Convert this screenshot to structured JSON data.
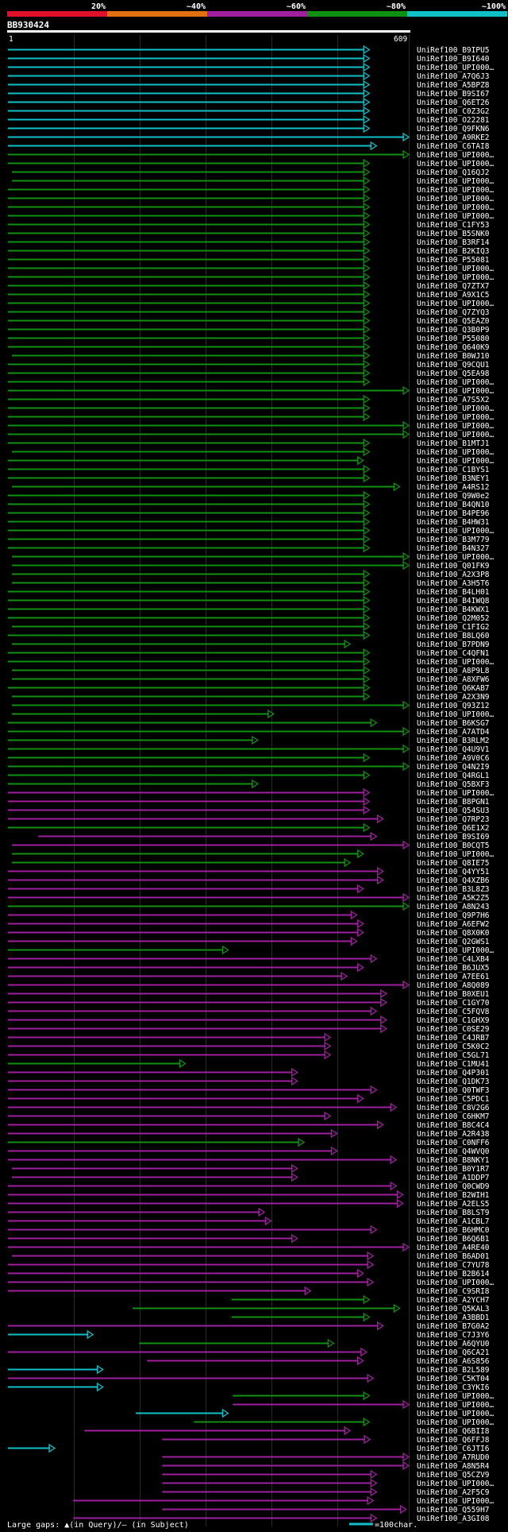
{
  "chart_data": {
    "type": "alignment-overview",
    "query": {
      "id": "BB930424",
      "start": "1",
      "end": "609",
      "length": 609
    },
    "identity_scale": [
      {
        "label": "20%",
        "color": "#e0102a"
      },
      {
        "label": "~40%",
        "color": "#e07010"
      },
      {
        "label": "~60%",
        "color": "#a020a0"
      },
      {
        "label": "~80%",
        "color": "#109010"
      },
      {
        "label": "~100%",
        "color": "#10c0c8"
      }
    ],
    "footer": {
      "gaps_text": "Large gaps: ▲(in Query)/– (in Subject)",
      "legend_text": "=100char."
    },
    "hits": [
      {
        "name": "UniRef100_B9IPU5",
        "cls": 4,
        "s": 1,
        "e": 549
      },
      {
        "name": "UniRef100_B9I640",
        "cls": 4,
        "s": 1,
        "e": 549
      },
      {
        "name": "UniRef100_UPI000…",
        "cls": 4,
        "s": 1,
        "e": 549
      },
      {
        "name": "UniRef100_A7Q6J3",
        "cls": 4,
        "s": 1,
        "e": 549
      },
      {
        "name": "UniRef100_A5BPZ8",
        "cls": 4,
        "s": 1,
        "e": 549
      },
      {
        "name": "UniRef100_B9SI67",
        "cls": 4,
        "s": 1,
        "e": 549
      },
      {
        "name": "UniRef100_Q6ET26",
        "cls": 4,
        "s": 1,
        "e": 549
      },
      {
        "name": "UniRef100_C0Z3G2",
        "cls": 4,
        "s": 1,
        "e": 549
      },
      {
        "name": "UniRef100_O22281",
        "cls": 4,
        "s": 1,
        "e": 549
      },
      {
        "name": "UniRef100_Q9FKN6",
        "cls": 4,
        "s": 1,
        "e": 549
      },
      {
        "name": "UniRef100_A9RKE2",
        "cls": 4,
        "s": 1,
        "e": 609
      },
      {
        "name": "UniRef100_C6TAI8",
        "cls": 4,
        "s": 1,
        "e": 560
      },
      {
        "name": "UniRef100_UPI000…",
        "cls": 3,
        "s": 1,
        "e": 609
      },
      {
        "name": "UniRef100_UPI000…",
        "cls": 3,
        "s": 1,
        "e": 549
      },
      {
        "name": "UniRef100_Q16QJ2",
        "cls": 3,
        "s": 7,
        "e": 549
      },
      {
        "name": "UniRef100_UPI000…",
        "cls": 3,
        "s": 7,
        "e": 549
      },
      {
        "name": "UniRef100_UPI000…",
        "cls": 3,
        "s": 1,
        "e": 549
      },
      {
        "name": "UniRef100_UPI000…",
        "cls": 3,
        "s": 1,
        "e": 549
      },
      {
        "name": "UniRef100_UPI000…",
        "cls": 3,
        "s": 1,
        "e": 549
      },
      {
        "name": "UniRef100_UPI000…",
        "cls": 3,
        "s": 1,
        "e": 549
      },
      {
        "name": "UniRef100_C1FY53",
        "cls": 3,
        "s": 1,
        "e": 549
      },
      {
        "name": "UniRef100_B5SNK0",
        "cls": 3,
        "s": 1,
        "e": 549
      },
      {
        "name": "UniRef100_B3RF14",
        "cls": 3,
        "s": 1,
        "e": 549
      },
      {
        "name": "UniRef100_B2KIQ3",
        "cls": 3,
        "s": 1,
        "e": 549
      },
      {
        "name": "UniRef100_P55081",
        "cls": 3,
        "s": 1,
        "e": 549
      },
      {
        "name": "UniRef100_UPI000…",
        "cls": 3,
        "s": 1,
        "e": 549
      },
      {
        "name": "UniRef100_UPI000…",
        "cls": 3,
        "s": 1,
        "e": 549
      },
      {
        "name": "UniRef100_Q7ZTX7",
        "cls": 3,
        "s": 1,
        "e": 549
      },
      {
        "name": "UniRef100_A9X1C5",
        "cls": 3,
        "s": 1,
        "e": 549
      },
      {
        "name": "UniRef100_UPI000…",
        "cls": 3,
        "s": 1,
        "e": 549
      },
      {
        "name": "UniRef100_Q7ZYQ3",
        "cls": 3,
        "s": 1,
        "e": 549
      },
      {
        "name": "UniRef100_Q5EAZ0",
        "cls": 3,
        "s": 1,
        "e": 549
      },
      {
        "name": "UniRef100_Q3B0P9",
        "cls": 3,
        "s": 1,
        "e": 549
      },
      {
        "name": "UniRef100_P55080",
        "cls": 3,
        "s": 1,
        "e": 549
      },
      {
        "name": "UniRef100_Q640K9",
        "cls": 3,
        "s": 1,
        "e": 549
      },
      {
        "name": "UniRef100_B0WJ10",
        "cls": 3,
        "s": 7,
        "e": 549
      },
      {
        "name": "UniRef100_Q9CQU1",
        "cls": 3,
        "s": 1,
        "e": 549
      },
      {
        "name": "UniRef100_Q5EA98",
        "cls": 3,
        "s": 1,
        "e": 549
      },
      {
        "name": "UniRef100_UPI000…",
        "cls": 3,
        "s": 1,
        "e": 549
      },
      {
        "name": "UniRef100_UPI000…",
        "cls": 3,
        "s": 1,
        "e": 609
      },
      {
        "name": "UniRef100_A7S5X2",
        "cls": 3,
        "s": 1,
        "e": 549
      },
      {
        "name": "UniRef100_UPI000…",
        "cls": 3,
        "s": 1,
        "e": 549
      },
      {
        "name": "UniRef100_UPI000…",
        "cls": 3,
        "s": 1,
        "e": 549
      },
      {
        "name": "UniRef100_UPI000…",
        "cls": 3,
        "s": 1,
        "e": 609
      },
      {
        "name": "UniRef100_UPI000…",
        "cls": 3,
        "s": 1,
        "e": 609
      },
      {
        "name": "UniRef100_B1MTJ1",
        "cls": 3,
        "s": 1,
        "e": 549
      },
      {
        "name": "UniRef100_UPI000…",
        "cls": 3,
        "s": 7,
        "e": 549
      },
      {
        "name": "UniRef100_UPI000…",
        "cls": 3,
        "s": 1,
        "e": 540
      },
      {
        "name": "UniRef100_C1BYS1",
        "cls": 3,
        "s": 1,
        "e": 549
      },
      {
        "name": "UniRef100_B3NEY1",
        "cls": 3,
        "s": 1,
        "e": 549
      },
      {
        "name": "UniRef100_A4RS12",
        "cls": 3,
        "s": 7,
        "e": 595
      },
      {
        "name": "UniRef100_Q9W0e2",
        "cls": 3,
        "s": 1,
        "e": 549
      },
      {
        "name": "UniRef100_B4QN10",
        "cls": 3,
        "s": 1,
        "e": 549
      },
      {
        "name": "UniRef100_B4PE96",
        "cls": 3,
        "s": 1,
        "e": 549
      },
      {
        "name": "UniRef100_B4HW31",
        "cls": 3,
        "s": 1,
        "e": 549
      },
      {
        "name": "UniRef100_UPI000…",
        "cls": 3,
        "s": 1,
        "e": 549
      },
      {
        "name": "UniRef100_B3M779",
        "cls": 3,
        "s": 1,
        "e": 549
      },
      {
        "name": "UniRef100_B4N327",
        "cls": 3,
        "s": 1,
        "e": 549
      },
      {
        "name": "UniRef100_UPI000…",
        "cls": 3,
        "s": 7,
        "e": 609
      },
      {
        "name": "UniRef100_Q01FK9",
        "cls": 3,
        "s": 7,
        "e": 609
      },
      {
        "name": "UniRef100_A2X3P8",
        "cls": 3,
        "s": 7,
        "e": 549
      },
      {
        "name": "UniRef100_A3H5T6",
        "cls": 3,
        "s": 7,
        "e": 549
      },
      {
        "name": "UniRef100_B4LH01",
        "cls": 3,
        "s": 1,
        "e": 549
      },
      {
        "name": "UniRef100_B4IWQ8",
        "cls": 3,
        "s": 1,
        "e": 549
      },
      {
        "name": "UniRef100_B4KWX1",
        "cls": 3,
        "s": 1,
        "e": 549
      },
      {
        "name": "UniRef100_Q2M052",
        "cls": 3,
        "s": 1,
        "e": 549
      },
      {
        "name": "UniRef100_C1FIG2",
        "cls": 3,
        "s": 7,
        "e": 549
      },
      {
        "name": "UniRef100_B8LQ60",
        "cls": 3,
        "s": 1,
        "e": 549
      },
      {
        "name": "UniRef100_B7PDN9",
        "cls": 3,
        "s": 7,
        "e": 520
      },
      {
        "name": "UniRef100_C4QFN1",
        "cls": 3,
        "s": 1,
        "e": 549
      },
      {
        "name": "UniRef100_UPI000…",
        "cls": 3,
        "s": 1,
        "e": 549
      },
      {
        "name": "UniRef100_A8P9L8",
        "cls": 3,
        "s": 7,
        "e": 549
      },
      {
        "name": "UniRef100_A8XFW6",
        "cls": 3,
        "s": 7,
        "e": 549
      },
      {
        "name": "UniRef100_Q6KAB7",
        "cls": 3,
        "s": 1,
        "e": 549
      },
      {
        "name": "UniRef100_A2X3N9",
        "cls": 3,
        "s": 7,
        "e": 549
      },
      {
        "name": "UniRef100_Q93Z12",
        "cls": 3,
        "s": 7,
        "e": 609
      },
      {
        "name": "UniRef100_UPI000…",
        "cls": 3,
        "s": 7,
        "e": 404
      },
      {
        "name": "UniRef100_B6KSG7",
        "cls": 3,
        "s": 1,
        "e": 560
      },
      {
        "name": "UniRef100_A7ATD4",
        "cls": 3,
        "s": 1,
        "e": 609
      },
      {
        "name": "UniRef100_B3RLM2",
        "cls": 3,
        "s": 1,
        "e": 380
      },
      {
        "name": "UniRef100_Q4U9V1",
        "cls": 3,
        "s": 1,
        "e": 609
      },
      {
        "name": "UniRef100_A9V0C6",
        "cls": 3,
        "s": 1,
        "e": 549
      },
      {
        "name": "UniRef100_Q4N2I9",
        "cls": 3,
        "s": 1,
        "e": 609
      },
      {
        "name": "UniRef100_Q4RGL1",
        "cls": 3,
        "s": 1,
        "e": 549
      },
      {
        "name": "UniRef100_Q5BXF3",
        "cls": 3,
        "s": 1,
        "e": 380
      },
      {
        "name": "UniRef100_UPI000…",
        "cls": 2,
        "s": 1,
        "e": 549
      },
      {
        "name": "UniRef100_B8PGN1",
        "cls": 2,
        "s": 1,
        "e": 549
      },
      {
        "name": "UniRef100_Q54SU3",
        "cls": 2,
        "s": 1,
        "e": 549
      },
      {
        "name": "UniRef100_Q7RP23",
        "cls": 2,
        "s": 1,
        "e": 570
      },
      {
        "name": "UniRef100_Q6E1X2",
        "cls": 3,
        "s": 1,
        "e": 549
      },
      {
        "name": "UniRef100_B9SI69",
        "cls": 2,
        "s": 47,
        "e": 560
      },
      {
        "name": "UniRef100_B0CQT5",
        "cls": 2,
        "s": 7,
        "e": 609
      },
      {
        "name": "UniRef100_UPI000…",
        "cls": 3,
        "s": 7,
        "e": 540
      },
      {
        "name": "UniRef100_Q8IE75",
        "cls": 3,
        "s": 7,
        "e": 520
      },
      {
        "name": "UniRef100_Q4YY51",
        "cls": 2,
        "s": 1,
        "e": 570
      },
      {
        "name": "UniRef100_Q4XZB6",
        "cls": 2,
        "s": 1,
        "e": 570
      },
      {
        "name": "UniRef100_B3L8Z3",
        "cls": 2,
        "s": 1,
        "e": 540
      },
      {
        "name": "UniRef100_A5K2Z5",
        "cls": 2,
        "s": 1,
        "e": 609
      },
      {
        "name": "UniRef100_A8N243",
        "cls": 3,
        "s": 1,
        "e": 609
      },
      {
        "name": "UniRef100_Q9P7H6",
        "cls": 2,
        "s": 1,
        "e": 530
      },
      {
        "name": "UniRef100_A6EFW2",
        "cls": 2,
        "s": 1,
        "e": 540
      },
      {
        "name": "UniRef100_Q8X0K0",
        "cls": 2,
        "s": 1,
        "e": 540
      },
      {
        "name": "UniRef100_Q2GWS1",
        "cls": 2,
        "s": 1,
        "e": 530
      },
      {
        "name": "UniRef100_UPI000…",
        "cls": 3,
        "s": 1,
        "e": 335
      },
      {
        "name": "UniRef100_C4LXB4",
        "cls": 2,
        "s": 1,
        "e": 560
      },
      {
        "name": "UniRef100_B6JUX5",
        "cls": 2,
        "s": 1,
        "e": 540
      },
      {
        "name": "UniRef100_A7EE61",
        "cls": 2,
        "s": 1,
        "e": 515
      },
      {
        "name": "UniRef100_A8Q089",
        "cls": 2,
        "s": 1,
        "e": 609
      },
      {
        "name": "UniRef100_B0XEU1",
        "cls": 2,
        "s": 1,
        "e": 575
      },
      {
        "name": "UniRef100_C1GY70",
        "cls": 2,
        "s": 1,
        "e": 575
      },
      {
        "name": "UniRef100_C5FQV8",
        "cls": 2,
        "s": 1,
        "e": 560
      },
      {
        "name": "UniRef100_C1GHX9",
        "cls": 2,
        "s": 1,
        "e": 575
      },
      {
        "name": "UniRef100_C0SE29",
        "cls": 2,
        "s": 1,
        "e": 575
      },
      {
        "name": "UniRef100_C4JRB7",
        "cls": 2,
        "s": 1,
        "e": 490
      },
      {
        "name": "UniRef100_C5K0C2",
        "cls": 2,
        "s": 1,
        "e": 490
      },
      {
        "name": "UniRef100_C5GL71",
        "cls": 2,
        "s": 1,
        "e": 490
      },
      {
        "name": "UniRef100_C1MU41",
        "cls": 3,
        "s": 1,
        "e": 270
      },
      {
        "name": "UniRef100_Q4P301",
        "cls": 2,
        "s": 1,
        "e": 440
      },
      {
        "name": "UniRef100_Q1DK73",
        "cls": 2,
        "s": 1,
        "e": 440
      },
      {
        "name": "UniRef100_Q0TWF3",
        "cls": 2,
        "s": 1,
        "e": 560
      },
      {
        "name": "UniRef100_C5PDC1",
        "cls": 2,
        "s": 1,
        "e": 540
      },
      {
        "name": "UniRef100_C8V2G6",
        "cls": 2,
        "s": 1,
        "e": 590
      },
      {
        "name": "UniRef100_C6HKM7",
        "cls": 2,
        "s": 1,
        "e": 490
      },
      {
        "name": "UniRef100_B8C4C4",
        "cls": 2,
        "s": 1,
        "e": 570
      },
      {
        "name": "UniRef100_A2R438",
        "cls": 2,
        "s": 1,
        "e": 500
      },
      {
        "name": "UniRef100_C0NFF6",
        "cls": 3,
        "s": 1,
        "e": 450
      },
      {
        "name": "UniRef100_Q4WVQ0",
        "cls": 2,
        "s": 1,
        "e": 500
      },
      {
        "name": "UniRef100_B8NKY1",
        "cls": 2,
        "s": 1,
        "e": 590
      },
      {
        "name": "UniRef100_B0Y1R7",
        "cls": 2,
        "s": 7,
        "e": 440
      },
      {
        "name": "UniRef100_A1DDP7",
        "cls": 2,
        "s": 7,
        "e": 440
      },
      {
        "name": "UniRef100_Q0CWD9",
        "cls": 2,
        "s": 1,
        "e": 590
      },
      {
        "name": "UniRef100_B2WIH1",
        "cls": 2,
        "s": 1,
        "e": 600
      },
      {
        "name": "UniRef100_A2ELS5",
        "cls": 2,
        "s": 1,
        "e": 600
      },
      {
        "name": "UniRef100_B8LST9",
        "cls": 2,
        "s": 1,
        "e": 390
      },
      {
        "name": "UniRef100_A1CBL7",
        "cls": 2,
        "s": 1,
        "e": 400
      },
      {
        "name": "UniRef100_B6HMC0",
        "cls": 2,
        "s": 1,
        "e": 560
      },
      {
        "name": "UniRef100_B6Q6B1",
        "cls": 2,
        "s": 1,
        "e": 440
      },
      {
        "name": "UniRef100_A4RE40",
        "cls": 2,
        "s": 1,
        "e": 609
      },
      {
        "name": "UniRef100_B6AD01",
        "cls": 2,
        "s": 7,
        "e": 555
      },
      {
        "name": "UniRef100_C7YU78",
        "cls": 2,
        "s": 1,
        "e": 555
      },
      {
        "name": "UniRef100_B2B614",
        "cls": 2,
        "s": 1,
        "e": 540
      },
      {
        "name": "UniRef100_UPI000…",
        "cls": 2,
        "s": 1,
        "e": 555
      },
      {
        "name": "UniRef100_C9SRI8",
        "cls": 2,
        "s": 1,
        "e": 460
      },
      {
        "name": "UniRef100_A2YCH7",
        "cls": 3,
        "s": 340,
        "e": 549
      },
      {
        "name": "UniRef100_Q5KAL3",
        "cls": 3,
        "s": 190,
        "e": 595
      },
      {
        "name": "UniRef100_A3BBD1",
        "cls": 3,
        "s": 340,
        "e": 549
      },
      {
        "name": "UniRef100_B7G0A2",
        "cls": 2,
        "s": 1,
        "e": 570
      },
      {
        "name": "UniRef100_C7J3Y6",
        "cls": 4,
        "s": 1,
        "e": 130
      },
      {
        "name": "UniRef100_A6QYU0",
        "cls": 3,
        "s": 200,
        "e": 495
      },
      {
        "name": "UniRef100_Q6CA21",
        "cls": 2,
        "s": 1,
        "e": 545
      },
      {
        "name": "UniRef100_A6S856",
        "cls": 2,
        "s": 212,
        "e": 540
      },
      {
        "name": "UniRef100_B2L589",
        "cls": 4,
        "s": 1,
        "e": 145
      },
      {
        "name": "UniRef100_C5KT04",
        "cls": 2,
        "s": 1,
        "e": 555
      },
      {
        "name": "UniRef100_C3YKI6",
        "cls": 4,
        "s": 1,
        "e": 145
      },
      {
        "name": "UniRef100_UPI000…",
        "cls": 3,
        "s": 342,
        "e": 549
      },
      {
        "name": "UniRef100_UPI000…",
        "cls": 2,
        "s": 342,
        "e": 609
      },
      {
        "name": "UniRef100_UPI000…",
        "cls": 4,
        "s": 195,
        "e": 335
      },
      {
        "name": "UniRef100_UPI000…",
        "cls": 3,
        "s": 283,
        "e": 549
      },
      {
        "name": "UniRef100_Q6BII8",
        "cls": 2,
        "s": 117,
        "e": 520
      },
      {
        "name": "UniRef100_Q6FFJ8",
        "cls": 2,
        "s": 235,
        "e": 550
      },
      {
        "name": "UniRef100_C6JTI6",
        "cls": 4,
        "s": 1,
        "e": 72
      },
      {
        "name": "UniRef100_A7RUD0",
        "cls": 2,
        "s": 235,
        "e": 609
      },
      {
        "name": "UniRef100_A8N5R4",
        "cls": 2,
        "s": 235,
        "e": 609
      },
      {
        "name": "UniRef100_Q5CZV9",
        "cls": 2,
        "s": 235,
        "e": 560
      },
      {
        "name": "UniRef100_UPI000…",
        "cls": 2,
        "s": 235,
        "e": 560
      },
      {
        "name": "UniRef100_A2F5C9",
        "cls": 2,
        "s": 235,
        "e": 560
      },
      {
        "name": "UniRef100_UPI000…",
        "cls": 2,
        "s": 100,
        "e": 555
      },
      {
        "name": "UniRef100_Q559H7",
        "cls": 2,
        "s": 235,
        "e": 605
      },
      {
        "name": "UniRef100_A3GI08",
        "cls": 2,
        "s": 100,
        "e": 560
      }
    ]
  }
}
